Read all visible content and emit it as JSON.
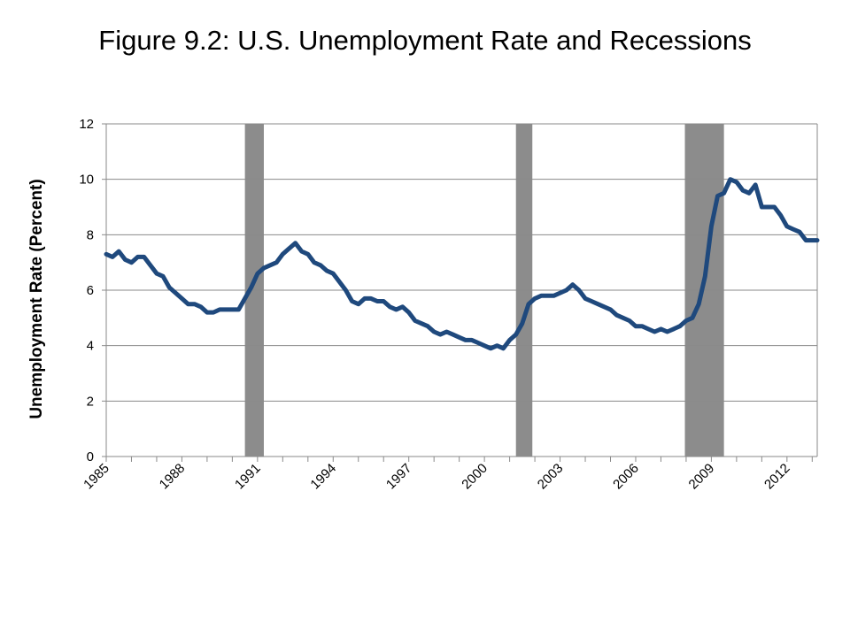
{
  "chart_data": {
    "type": "line",
    "title": "Figure 9.2: U.S. Unemployment Rate and Recessions",
    "xlabel": "",
    "ylabel": "Unemployment Rate (Percent)",
    "xlim": [
      1985,
      2013.2
    ],
    "ylim": [
      0,
      12
    ],
    "yticks": [
      0,
      2,
      4,
      6,
      8,
      10,
      12
    ],
    "xticks": [
      1985,
      1988,
      1991,
      1994,
      1997,
      2000,
      2003,
      2006,
      2009,
      2012
    ],
    "xtick_labels": [
      "1985",
      "1988",
      "1991",
      "1994",
      "1997",
      "2000",
      "2003",
      "2006",
      "2009",
      "2012"
    ],
    "grid": true,
    "legend": "none",
    "recessions": [
      {
        "start": 1990.5,
        "end": 1991.25
      },
      {
        "start": 2001.25,
        "end": 2001.9
      },
      {
        "start": 2007.95,
        "end": 2009.5
      }
    ],
    "series": [
      {
        "color": "#1f497d",
        "x": [
          1985,
          1985.25,
          1985.5,
          1985.75,
          1986,
          1986.25,
          1986.5,
          1986.75,
          1987,
          1987.25,
          1987.5,
          1987.75,
          1988,
          1988.25,
          1988.5,
          1988.75,
          1989,
          1989.25,
          1989.5,
          1989.75,
          1990,
          1990.25,
          1990.5,
          1990.75,
          1991,
          1991.25,
          1991.5,
          1991.75,
          1992,
          1992.25,
          1992.5,
          1992.75,
          1993,
          1993.25,
          1993.5,
          1993.75,
          1994,
          1994.25,
          1994.5,
          1994.75,
          1995,
          1995.25,
          1995.5,
          1995.75,
          1996,
          1996.25,
          1996.5,
          1996.75,
          1997,
          1997.25,
          1997.5,
          1997.75,
          1998,
          1998.25,
          1998.5,
          1998.75,
          1999,
          1999.25,
          1999.5,
          1999.75,
          2000,
          2000.25,
          2000.5,
          2000.75,
          2001,
          2001.25,
          2001.5,
          2001.75,
          2002,
          2002.25,
          2002.5,
          2002.75,
          2003,
          2003.25,
          2003.5,
          2003.75,
          2004,
          2004.25,
          2004.5,
          2004.75,
          2005,
          2005.25,
          2005.5,
          2005.75,
          2006,
          2006.25,
          2006.5,
          2006.75,
          2007,
          2007.25,
          2007.5,
          2007.75,
          2008,
          2008.25,
          2008.5,
          2008.75,
          2009,
          2009.25,
          2009.5,
          2009.75,
          2010,
          2010.25,
          2010.5,
          2010.75,
          2011,
          2011.25,
          2011.5,
          2011.75,
          2012,
          2012.25,
          2012.5,
          2012.75,
          2013,
          2013.2
        ],
        "values": [
          7.3,
          7.2,
          7.4,
          7.1,
          7.0,
          7.2,
          7.2,
          6.9,
          6.6,
          6.5,
          6.1,
          5.9,
          5.7,
          5.5,
          5.5,
          5.4,
          5.2,
          5.2,
          5.3,
          5.3,
          5.3,
          5.3,
          5.7,
          6.1,
          6.6,
          6.8,
          6.9,
          7.0,
          7.3,
          7.5,
          7.7,
          7.4,
          7.3,
          7.0,
          6.9,
          6.7,
          6.6,
          6.3,
          6.0,
          5.6,
          5.5,
          5.7,
          5.7,
          5.6,
          5.6,
          5.4,
          5.3,
          5.4,
          5.2,
          4.9,
          4.8,
          4.7,
          4.5,
          4.4,
          4.5,
          4.4,
          4.3,
          4.2,
          4.2,
          4.1,
          4.0,
          3.9,
          4.0,
          3.9,
          4.2,
          4.4,
          4.8,
          5.5,
          5.7,
          5.8,
          5.8,
          5.8,
          5.9,
          6.0,
          6.2,
          6.0,
          5.7,
          5.6,
          5.5,
          5.4,
          5.3,
          5.1,
          5.0,
          4.9,
          4.7,
          4.7,
          4.6,
          4.5,
          4.6,
          4.5,
          4.6,
          4.7,
          4.9,
          5.0,
          5.5,
          6.5,
          8.3,
          9.4,
          9.5,
          10.0,
          9.9,
          9.6,
          9.5,
          9.8,
          9.0,
          9.0,
          9.0,
          8.7,
          8.3,
          8.2,
          8.1,
          7.8,
          7.8,
          7.8
        ]
      }
    ]
  }
}
